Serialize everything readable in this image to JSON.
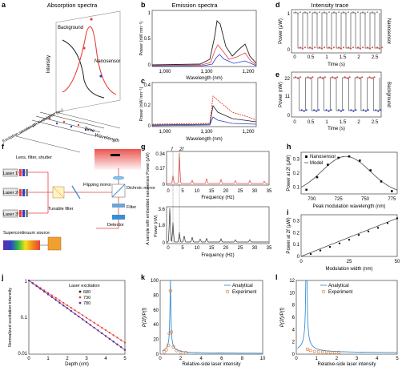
{
  "panels": {
    "a": {
      "letter": "a",
      "title": "Absorption spectra",
      "intensity": "Intensity",
      "background": "Background",
      "nanosensor": "Nanosensor",
      "time": "Time",
      "wavelength": "Wavelength",
      "excitation": "Excitation wavelength modulation (ω₀)"
    },
    "b": {
      "letter": "b",
      "title": "Emission spectra",
      "ylabel": "Power (nW nm⁻¹)",
      "xlabel": "Wavelength (nm)",
      "yticks": [
        "1",
        "0.5",
        "0"
      ],
      "xticks": [
        "1,000",
        "1,100",
        "1,200"
      ]
    },
    "c": {
      "letter": "c",
      "ylabel": "Power (nW nm⁻¹)",
      "xlabel": "Wavelength (nm)",
      "yticks": [
        "0.4",
        "0.2",
        "0"
      ],
      "xticks": [
        "1,000",
        "1,100",
        "1,200"
      ]
    },
    "d": {
      "letter": "d",
      "title": "Intensity trace",
      "ylabel": "Power (μW)",
      "xlabel": "Time (s)",
      "side": "Nanosensor",
      "yticks": [
        "1",
        "0"
      ],
      "xticks": [
        "0",
        "0.5",
        "1",
        "1.5",
        "2",
        "2.5"
      ]
    },
    "e": {
      "letter": "e",
      "ylabel": "Power (nW)",
      "xlabel": "Time (s)",
      "side": "Background",
      "yticks": [
        "22",
        "11",
        "0"
      ],
      "xticks": [
        "0",
        "0.5",
        "1",
        "1.5",
        "2",
        "2.5"
      ]
    },
    "f": {
      "letter": "f",
      "lens": "Lens, filter, shutter",
      "laser1": "Laser 1",
      "laser2": "Laser 2",
      "laser3": "Laser 3",
      "flipping": "Flipping mirror",
      "dichroic": "Dichroic mirror",
      "filter": "Filter",
      "detector": "Detector",
      "supercont": "Supercontinuum source",
      "tunable": "Tunable filter"
    },
    "g": {
      "letter": "g",
      "ylabel": "A sample with embedded nanosensor Power (μW)",
      "xlabel1": "Frequency (Hz)",
      "xlabel2": "Frequency (Hz)",
      "f": "f",
      "f2": "2f",
      "ylabel2": "Power (nW)",
      "yticks1": [
        "0.34",
        "0.17",
        "0"
      ],
      "yticks2": [
        "3.6",
        "1.8",
        "0"
      ],
      "xticks": [
        "0",
        "5",
        "10",
        "15",
        "20",
        "25",
        "30",
        "35"
      ]
    },
    "h": {
      "letter": "h",
      "ylabel": "Power at 2f (μW)",
      "xlabel": "Peak modulation wavelength (nm)",
      "leg1": "Nanosensor",
      "leg2": "Model",
      "yticks": [
        "0.3",
        "0.2",
        "0.1"
      ],
      "xticks": [
        "700",
        "725",
        "750",
        "775"
      ]
    },
    "i": {
      "letter": "i",
      "ylabel": "Power at 2f (μW)",
      "xlabel": "Modulation width (nm)",
      "yticks": [
        "0.3",
        "0.2",
        "0.1",
        "0"
      ],
      "xticks": [
        "0",
        "25",
        "50"
      ]
    },
    "j": {
      "letter": "j",
      "ylabel": "Normalized excitation intensity",
      "xlabel": "Depth (cm)",
      "legend_title": "Laser excitation",
      "series": [
        "680",
        "730",
        "780"
      ],
      "yticks": [
        "1",
        "0.1",
        "0.01"
      ],
      "xticks": [
        "0",
        "1",
        "2",
        "3",
        "4",
        "5"
      ]
    },
    "k": {
      "letter": "k",
      "ylabel": "P(2f)/P(f)",
      "xlabel": "Relative-side laser intensity",
      "leg1": "Analytical",
      "leg2": "Experiment",
      "yticks": [
        "0",
        "20",
        "40",
        "60",
        "80",
        "100"
      ],
      "xticks": [
        "0",
        "2",
        "4",
        "6",
        "8",
        "10"
      ]
    },
    "l": {
      "letter": "l",
      "ylabel": "P(2f)/P(f)",
      "xlabel": "Relative-side laser intensity",
      "leg1": "Analytical",
      "leg2": "Experiment",
      "yticks": [
        "0",
        "2",
        "4",
        "6",
        "8",
        "10",
        "12"
      ],
      "xticks": [
        "0",
        "1",
        "2",
        "3",
        "4",
        "5"
      ]
    }
  },
  "colors": {
    "red": "#e8413c",
    "black": "#222222",
    "blue": "#2b3fcf",
    "purple": "#6a2d9f",
    "analytic": "#3b8fd1",
    "exp": "#e07a3a"
  },
  "chart_data": [
    {
      "type": "line",
      "panel": "j",
      "x": [
        0,
        1,
        2,
        3,
        4,
        5
      ],
      "series": [
        {
          "name": "680",
          "values": [
            1,
            0.42,
            0.18,
            0.075,
            0.032,
            0.014
          ]
        },
        {
          "name": "730",
          "values": [
            1,
            0.46,
            0.21,
            0.095,
            0.043,
            0.02
          ]
        },
        {
          "name": "780",
          "values": [
            1,
            0.42,
            0.18,
            0.075,
            0.032,
            0.014
          ]
        }
      ],
      "ylim": [
        0.01,
        1
      ],
      "log_y": true
    },
    {
      "type": "scatter",
      "panel": "i",
      "x": [
        5,
        10,
        15,
        20,
        25,
        30,
        35,
        40,
        45,
        50
      ],
      "values": [
        0.02,
        0.05,
        0.08,
        0.11,
        0.14,
        0.18,
        0.21,
        0.24,
        0.28,
        0.32
      ],
      "ylim": [
        0,
        0.35
      ]
    },
    {
      "type": "scatter",
      "panel": "h",
      "x": [
        695,
        705,
        715,
        725,
        735,
        745,
        755,
        765,
        775
      ],
      "values": [
        0.08,
        0.17,
        0.26,
        0.31,
        0.32,
        0.29,
        0.22,
        0.14,
        0.07
      ],
      "ylim": [
        0.05,
        0.35
      ]
    }
  ]
}
